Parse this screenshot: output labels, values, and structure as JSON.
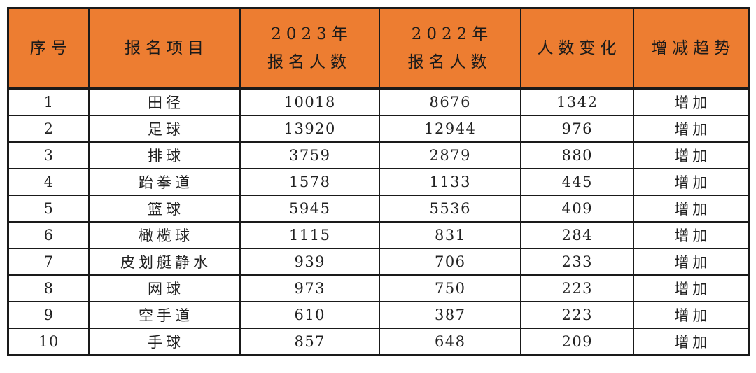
{
  "table": {
    "title": "sports-registration-statistics",
    "columns": [
      {
        "key": "index",
        "label": "序号"
      },
      {
        "key": "event",
        "label": "报名项目"
      },
      {
        "key": "count_2023",
        "label": "2023年\n报名人数"
      },
      {
        "key": "count_2022",
        "label": "2022年\n报名人数"
      },
      {
        "key": "change",
        "label": "人数变化"
      },
      {
        "key": "trend",
        "label": "增减趋势"
      }
    ],
    "rows": [
      [
        "1",
        "田径",
        "10018",
        "8676",
        "1342",
        "增加"
      ],
      [
        "2",
        "足球",
        "13920",
        "12944",
        "976",
        "增加"
      ],
      [
        "3",
        "排球",
        "3759",
        "2879",
        "880",
        "增加"
      ],
      [
        "4",
        "跆拳道",
        "1578",
        "1133",
        "445",
        "增加"
      ],
      [
        "5",
        "篮球",
        "5945",
        "5536",
        "409",
        "增加"
      ],
      [
        "6",
        "橄榄球",
        "1115",
        "831",
        "284",
        "增加"
      ],
      [
        "7",
        "皮划艇静水",
        "939",
        "706",
        "233",
        "增加"
      ],
      [
        "8",
        "网球",
        "973",
        "750",
        "223",
        "增加"
      ],
      [
        "9",
        "空手道",
        "610",
        "387",
        "223",
        "增加"
      ],
      [
        "10",
        "手球",
        "857",
        "648",
        "209",
        "增加"
      ]
    ],
    "cjk_columns": [
      1,
      5
    ]
  },
  "colors": {
    "header_bg": "#ED7D31",
    "border": "#1a1a1a",
    "header_text": "#1a1a1a",
    "body_text": "#222222",
    "page_bg": "#ffffff"
  }
}
